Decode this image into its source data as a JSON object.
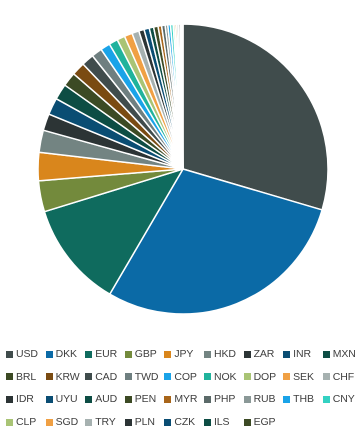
{
  "chart_data": {
    "type": "pie",
    "title": "",
    "start_angle_deg": 0,
    "direction": "clockwise",
    "legend_position": "bottom",
    "slices": [
      {
        "label": "USD",
        "value": 30.0,
        "color": "#404c4c"
      },
      {
        "label": "DKK",
        "value": 29.3,
        "color": "#0b6aa6"
      },
      {
        "label": "EUR",
        "value": 12.0,
        "color": "#0f6b5e"
      },
      {
        "label": "GBP",
        "value": 3.5,
        "color": "#738a3c"
      },
      {
        "label": "JPY",
        "value": 3.2,
        "color": "#d9861c"
      },
      {
        "label": "HKD",
        "value": 2.5,
        "color": "#738482"
      },
      {
        "label": "ZAR",
        "value": 1.9,
        "color": "#2c3435"
      },
      {
        "label": "INR",
        "value": 1.9,
        "color": "#0a4d73"
      },
      {
        "label": "MXN",
        "value": 1.8,
        "color": "#0d4d44"
      },
      {
        "label": "BRL",
        "value": 1.6,
        "color": "#3c4a24"
      },
      {
        "label": "KRW",
        "value": 1.5,
        "color": "#7a4b12"
      },
      {
        "label": "CAD",
        "value": 1.4,
        "color": "#404c4c"
      },
      {
        "label": "TWD",
        "value": 1.2,
        "color": "#6f7f80"
      },
      {
        "label": "COP",
        "value": 1.1,
        "color": "#1aa3e8"
      },
      {
        "label": "NOK",
        "value": 1.0,
        "color": "#20b39c"
      },
      {
        "label": "DOP",
        "value": 0.9,
        "color": "#a9c475"
      },
      {
        "label": "SEK",
        "value": 0.9,
        "color": "#f0a044"
      },
      {
        "label": "CHF",
        "value": 0.8,
        "color": "#a6b1b0"
      },
      {
        "label": "IDR",
        "value": 0.6,
        "color": "#2c3435"
      },
      {
        "label": "UYU",
        "value": 0.6,
        "color": "#0a4d73"
      },
      {
        "label": "AUD",
        "value": 0.5,
        "color": "#0d4d44"
      },
      {
        "label": "PEN",
        "value": 0.5,
        "color": "#3c4a24"
      },
      {
        "label": "MYR",
        "value": 0.4,
        "color": "#a8651a"
      },
      {
        "label": "PHP",
        "value": 0.4,
        "color": "#5b6a69"
      },
      {
        "label": "RUB",
        "value": 0.3,
        "color": "#8a9897"
      },
      {
        "label": "THB",
        "value": 0.3,
        "color": "#1aa3e8"
      },
      {
        "label": "CNY",
        "value": 0.3,
        "color": "#34d1c2"
      },
      {
        "label": "CLP",
        "value": 0.2,
        "color": "#a9c475"
      },
      {
        "label": "SGD",
        "value": 0.2,
        "color": "#f0a044"
      },
      {
        "label": "TRY",
        "value": 0.2,
        "color": "#a6b1b0"
      },
      {
        "label": "PLN",
        "value": 0.2,
        "color": "#2c3435"
      },
      {
        "label": "CZK",
        "value": 0.1,
        "color": "#0a4d73"
      },
      {
        "label": "ILS",
        "value": 0.1,
        "color": "#0d4d44"
      },
      {
        "label": "EGP",
        "value": 0.1,
        "color": "#3c4a24"
      }
    ]
  }
}
